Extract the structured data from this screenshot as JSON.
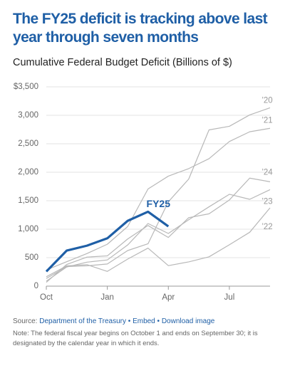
{
  "chart_data": {
    "type": "line",
    "title": "The FY25 deficit is tracking above last year through seven months",
    "subtitle": "Cumulative Federal Budget Deficit (Billions of $)",
    "categories": [
      "Oct",
      null,
      null,
      "Jan",
      null,
      null,
      "Apr",
      null,
      null,
      "Jul",
      null,
      null
    ],
    "ylim": [
      0,
      3500
    ],
    "yticks": [
      0,
      {
        "value": 500,
        "label": "500"
      },
      {
        "value": 1000,
        "label": "1,000"
      },
      {
        "value": 1500,
        "label": "1,500"
      },
      {
        "value": 2000,
        "label": "2,000"
      },
      {
        "value": 2500,
        "label": "2,500"
      },
      {
        "value": 3000,
        "label": "3,000"
      },
      {
        "value": 3500,
        "label": "$3,500"
      }
    ],
    "grid": true,
    "series": [
      {
        "name": "’20",
        "color": "#b8b8b8",
        "values": [
          134,
          343,
          357,
          389,
          625,
          744,
          1481,
          1880,
          2744,
          2807,
          3007,
          3132
        ]
      },
      {
        "name": "’21",
        "color": "#b8b8b8",
        "values": [
          284,
          429,
          573,
          736,
          1047,
          1706,
          1932,
          2064,
          2238,
          2540,
          2711,
          2772
        ]
      },
      {
        "name": "’22",
        "color": "#b8b8b8",
        "values": [
          165,
          356,
          377,
          259,
          475,
          668,
          360,
          426,
          515,
          726,
          946,
          1375
        ]
      },
      {
        "name": "’23",
        "color": "#b8b8b8",
        "values": [
          88,
          336,
          421,
          460,
          723,
          1100,
          925,
          1165,
          1393,
          1613,
          1525,
          1695
        ]
      },
      {
        "name": "’24",
        "color": "#b8b8b8",
        "values": [
          67,
          381,
          510,
          532,
          828,
          1065,
          855,
          1202,
          1270,
          1513,
          1897,
          1833
        ]
      },
      {
        "name": "FY25",
        "color": "#1f5fa6",
        "values": [
          257,
          624,
          711,
          840,
          1147,
          1307,
          1049,
          null,
          null,
          null,
          null,
          null
        ]
      }
    ],
    "source": {
      "label": "Source:",
      "link": "Department of the Treasury",
      "sep1": "•",
      "embed": "Embed",
      "sep2": "•",
      "download": "Download image"
    },
    "note": "Note: The federal fiscal year begins on October 1 and ends on September 30; it is designated by the calendar year in which it ends."
  }
}
